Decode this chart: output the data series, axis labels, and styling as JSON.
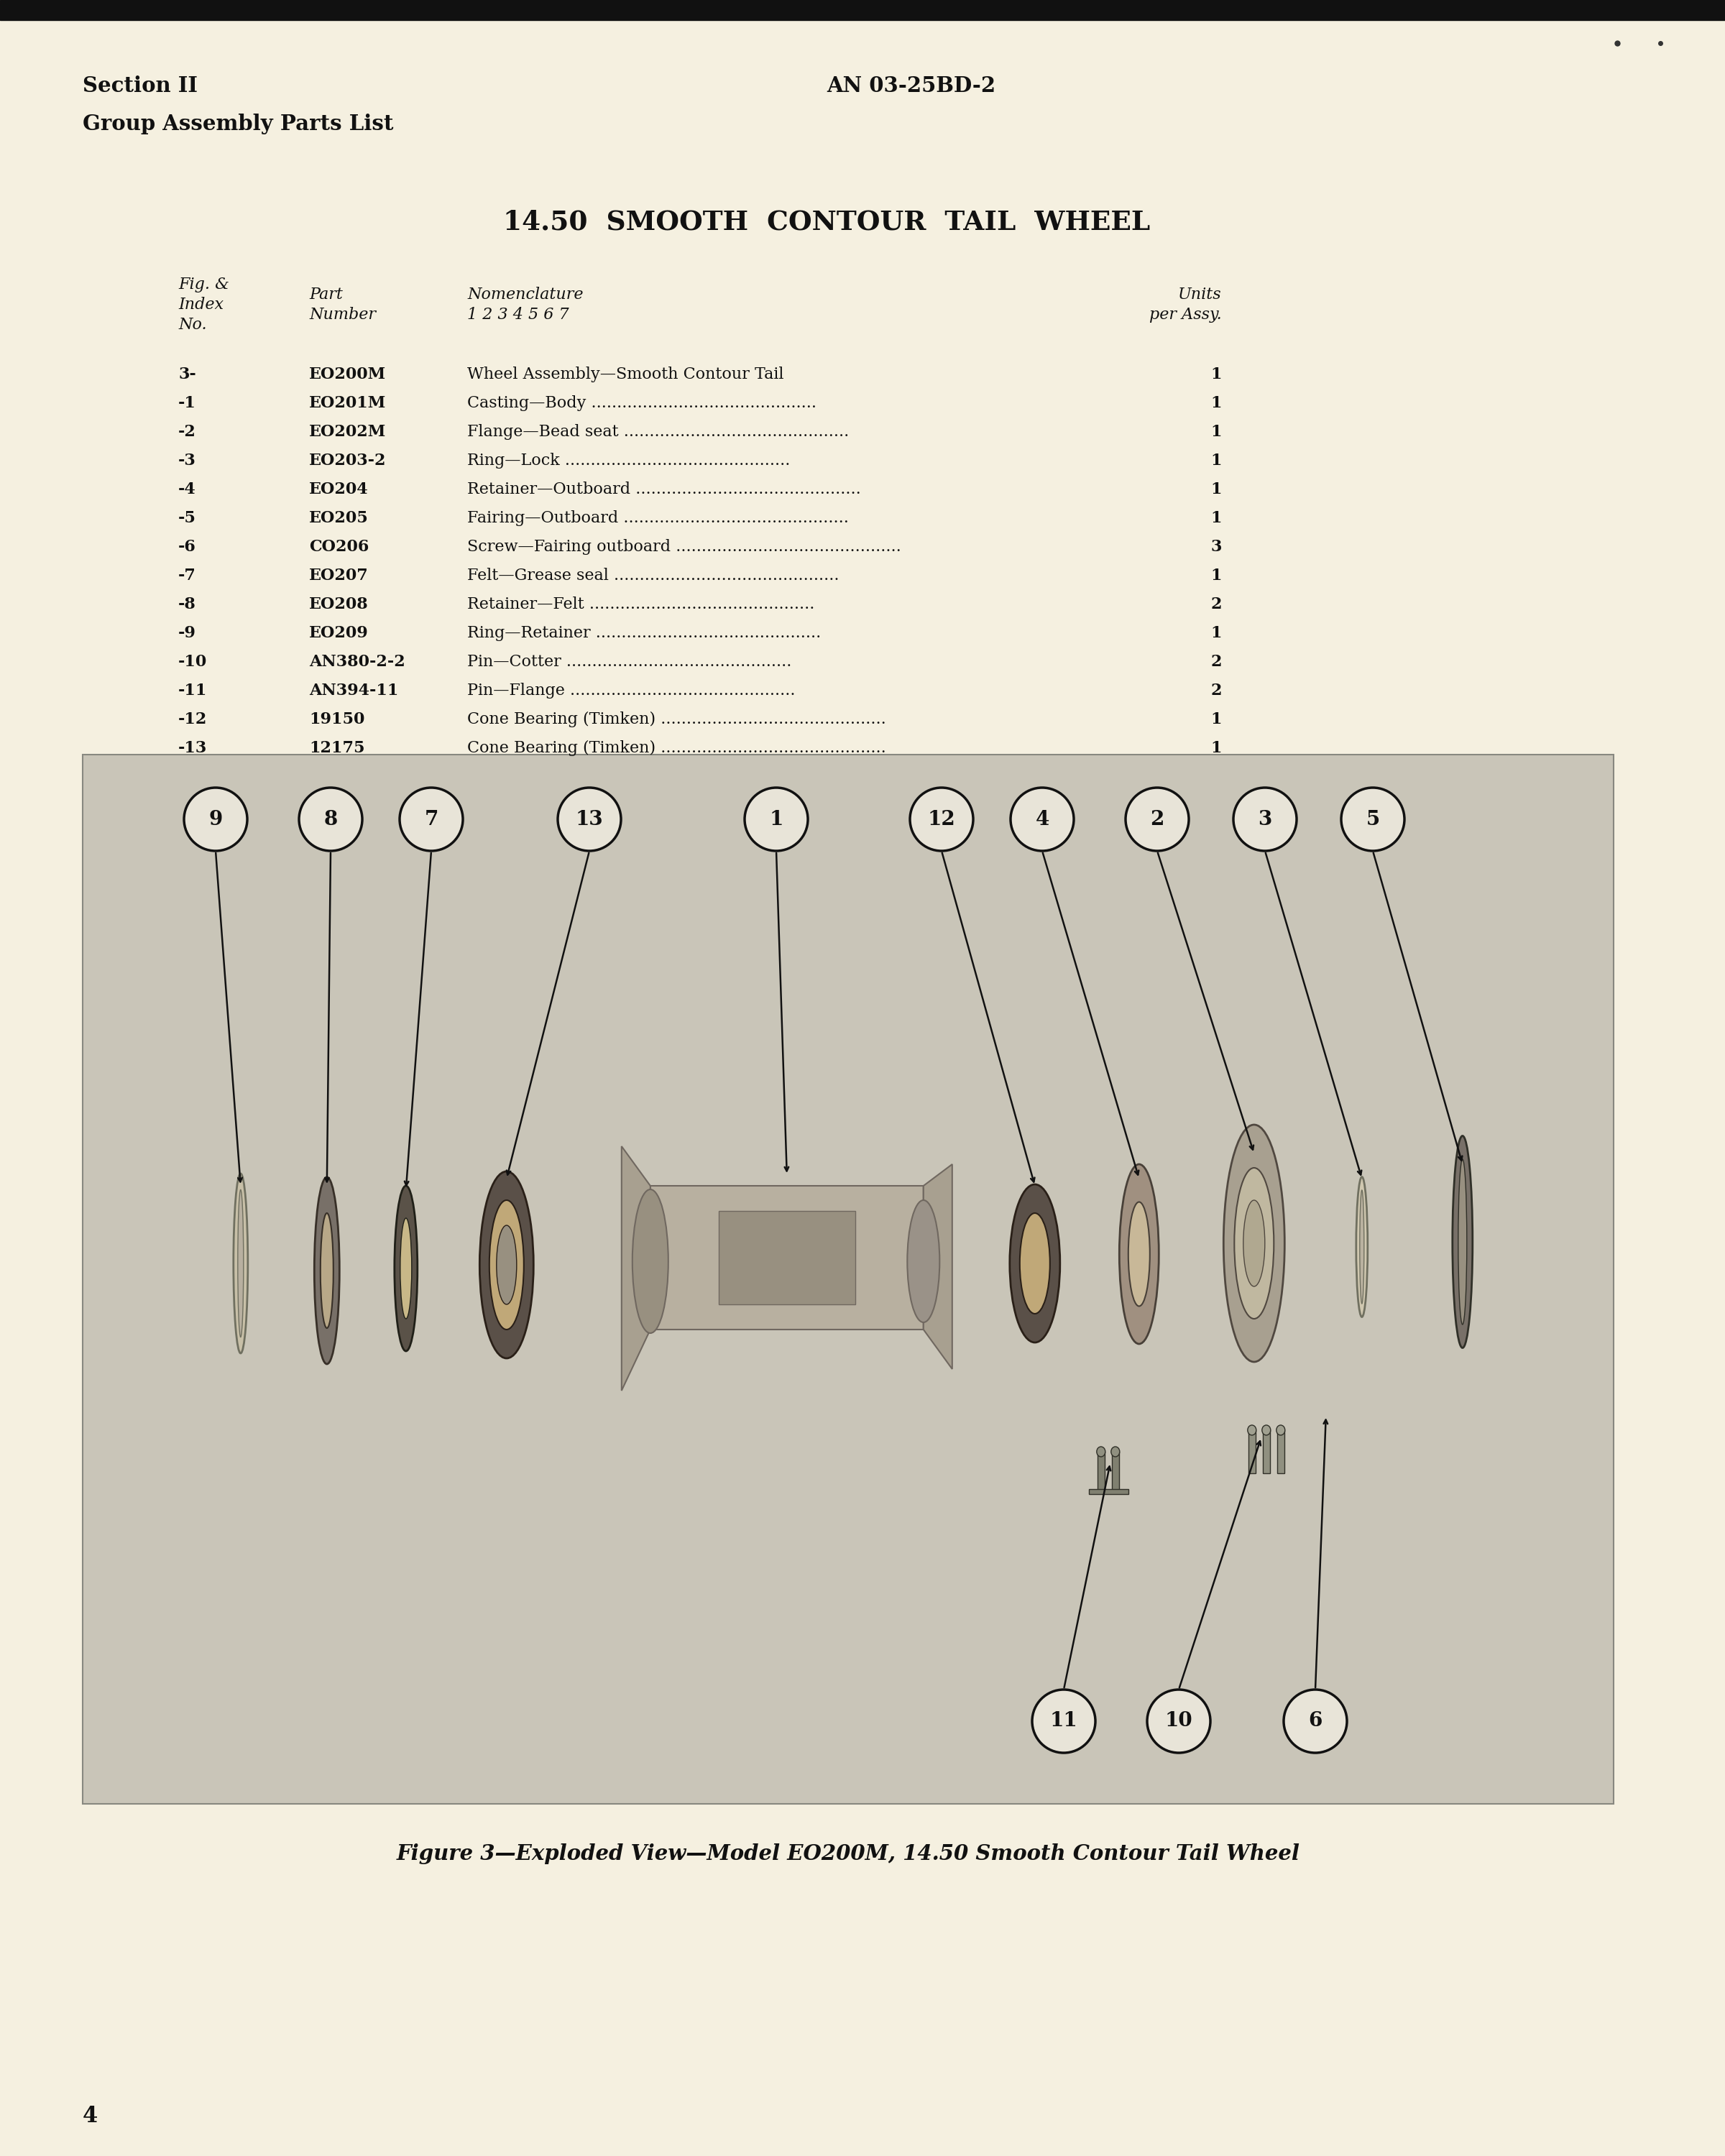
{
  "bg_color": "#f5f0e0",
  "header_left_line1": "Section II",
  "header_left_line2": "Group Assembly Parts List",
  "header_right": "AN 03-25BD-2",
  "page_number": "4",
  "main_title": "14.50  SMOOTH  CONTOUR  TAIL  WHEEL",
  "table_rows": [
    [
      "3-",
      "EO200M",
      "Wheel Assembly—Smooth Contour Tail",
      "1"
    ],
    [
      "-1",
      "EO201M",
      "Casting—Body ............................................",
      "1"
    ],
    [
      "-2",
      "EO202M",
      "Flange—Bead seat ............................................",
      "1"
    ],
    [
      "-3",
      "EO203-2",
      "Ring—Lock ............................................",
      "1"
    ],
    [
      "-4",
      "EO204",
      "Retainer—Outboard ............................................",
      "1"
    ],
    [
      "-5",
      "EO205",
      "Fairing—Outboard ............................................",
      "1"
    ],
    [
      "-6",
      "CO206",
      "Screw—Fairing outboard ............................................",
      "3"
    ],
    [
      "-7",
      "EO207",
      "Felt—Grease seal ............................................",
      "1"
    ],
    [
      "-8",
      "EO208",
      "Retainer—Felt ............................................",
      "2"
    ],
    [
      "-9",
      "EO209",
      "Ring—Retainer ............................................",
      "1"
    ],
    [
      "-10",
      "AN380-2-2",
      "Pin—Cotter ............................................",
      "2"
    ],
    [
      "-11",
      "AN394-11",
      "Pin—Flange ............................................",
      "2"
    ],
    [
      "-12",
      "19150",
      "Cone Bearing (Timken) ............................................",
      "1"
    ],
    [
      "-13",
      "12175",
      "Cone Bearing (Timken) ............................................",
      "1"
    ]
  ],
  "figure_caption": "Figure 3—Exploded View—Model EO200M, 14.50 Smooth Contour Tail Wheel",
  "label_positions": [
    [
      300,
      "9"
    ],
    [
      460,
      "8"
    ],
    [
      600,
      "7"
    ],
    [
      820,
      "13"
    ],
    [
      1080,
      "1"
    ],
    [
      1310,
      "12"
    ],
    [
      1450,
      "4"
    ],
    [
      1610,
      "2"
    ],
    [
      1760,
      "3"
    ],
    [
      1910,
      "5"
    ]
  ],
  "bottom_labels": [
    [
      1480,
      "11"
    ],
    [
      1640,
      "10"
    ],
    [
      1830,
      "6"
    ]
  ]
}
